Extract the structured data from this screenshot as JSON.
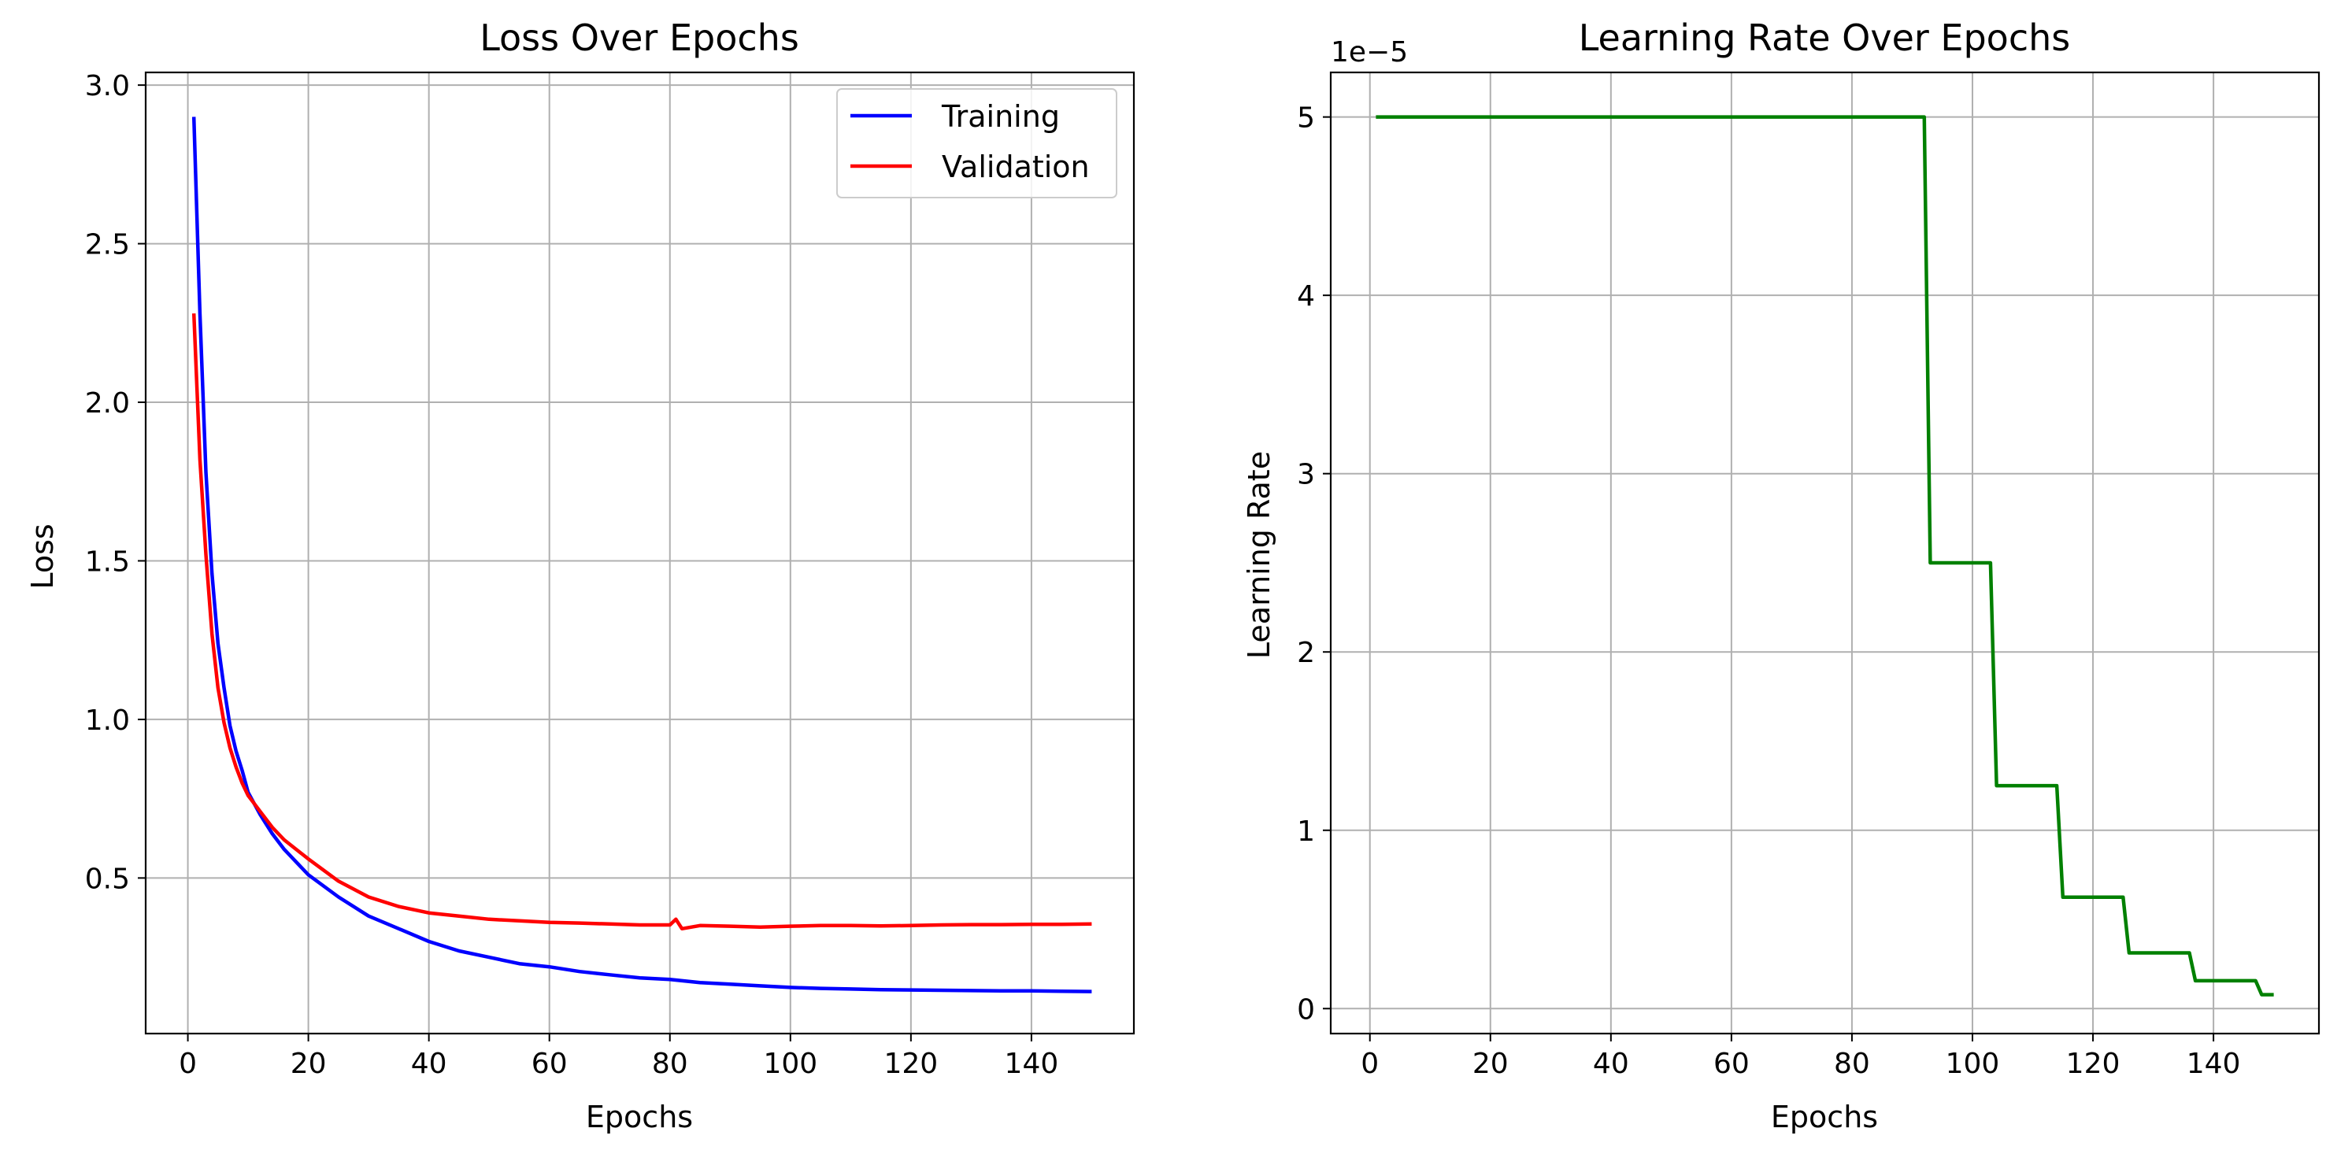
{
  "chart_data": [
    {
      "type": "line",
      "title": "Loss Over Epochs",
      "xlabel": "Epochs",
      "ylabel": "Loss",
      "xlim": [
        -7,
        157
      ],
      "ylim": [
        0.0095,
        3.04
      ],
      "xticks": [
        "0",
        "20",
        "40",
        "60",
        "80",
        "100",
        "120",
        "140"
      ],
      "xtick_values": [
        0,
        20,
        40,
        60,
        80,
        100,
        120,
        140
      ],
      "yticks": [
        "0.5",
        "1.0",
        "1.5",
        "2.0",
        "2.5",
        "3.0"
      ],
      "ytick_values": [
        0.5,
        1.0,
        1.5,
        2.0,
        2.5,
        3.0
      ],
      "grid": true,
      "legend": "top-right",
      "series": [
        {
          "name": "Training",
          "color": "#0000ff",
          "x": [
            1,
            2,
            3,
            4,
            5,
            6,
            7,
            8,
            9,
            10,
            12,
            14,
            16,
            18,
            20,
            25,
            30,
            35,
            40,
            45,
            50,
            55,
            60,
            65,
            70,
            75,
            80,
            85,
            90,
            95,
            100,
            105,
            110,
            115,
            120,
            125,
            130,
            135,
            140,
            145,
            150
          ],
          "y": [
            2.9,
            2.28,
            1.78,
            1.46,
            1.24,
            1.1,
            0.98,
            0.9,
            0.84,
            0.77,
            0.7,
            0.64,
            0.59,
            0.55,
            0.51,
            0.44,
            0.38,
            0.34,
            0.3,
            0.27,
            0.25,
            0.23,
            0.22,
            0.205,
            0.195,
            0.185,
            0.18,
            0.17,
            0.165,
            0.16,
            0.155,
            0.152,
            0.15,
            0.148,
            0.147,
            0.146,
            0.145,
            0.144,
            0.144,
            0.143,
            0.142
          ]
        },
        {
          "name": "Validation",
          "color": "#ff0000",
          "x": [
            1,
            2,
            3,
            4,
            5,
            6,
            7,
            8,
            9,
            10,
            12,
            14,
            16,
            18,
            20,
            25,
            30,
            35,
            40,
            45,
            50,
            55,
            60,
            65,
            70,
            75,
            80,
            81,
            82,
            85,
            90,
            95,
            100,
            105,
            110,
            115,
            120,
            125,
            130,
            135,
            140,
            145,
            150
          ],
          "y": [
            2.28,
            1.82,
            1.52,
            1.27,
            1.1,
            0.99,
            0.91,
            0.85,
            0.8,
            0.76,
            0.71,
            0.66,
            0.62,
            0.59,
            0.56,
            0.49,
            0.44,
            0.41,
            0.39,
            0.38,
            0.37,
            0.365,
            0.36,
            0.358,
            0.355,
            0.352,
            0.352,
            0.37,
            0.34,
            0.35,
            0.348,
            0.345,
            0.348,
            0.35,
            0.35,
            0.349,
            0.35,
            0.352,
            0.353,
            0.353,
            0.354,
            0.354,
            0.355
          ]
        }
      ]
    },
    {
      "type": "line",
      "title": "Learning Rate Over Epochs",
      "xlabel": "Epochs",
      "ylabel": "Learning Rate",
      "offset_label": "1e−5",
      "xlim": [
        -6.5,
        157.5
      ],
      "ylim": [
        -0.14,
        5.25
      ],
      "xticks": [
        "0",
        "20",
        "40",
        "60",
        "80",
        "100",
        "120",
        "140"
      ],
      "xtick_values": [
        0,
        20,
        40,
        60,
        80,
        100,
        120,
        140
      ],
      "yticks": [
        "0",
        "1",
        "2",
        "3",
        "4",
        "5"
      ],
      "ytick_values": [
        0,
        1,
        2,
        3,
        4,
        5
      ],
      "grid": true,
      "series": [
        {
          "color": "#008000",
          "x": [
            1,
            92,
            93,
            103,
            104,
            114,
            115,
            125,
            126,
            136,
            137,
            147,
            148,
            150
          ],
          "y": [
            5.0,
            5.0,
            2.5,
            2.5,
            1.25,
            1.25,
            0.625,
            0.625,
            0.3125,
            0.3125,
            0.15625,
            0.15625,
            0.078125,
            0.078125
          ]
        }
      ]
    }
  ]
}
